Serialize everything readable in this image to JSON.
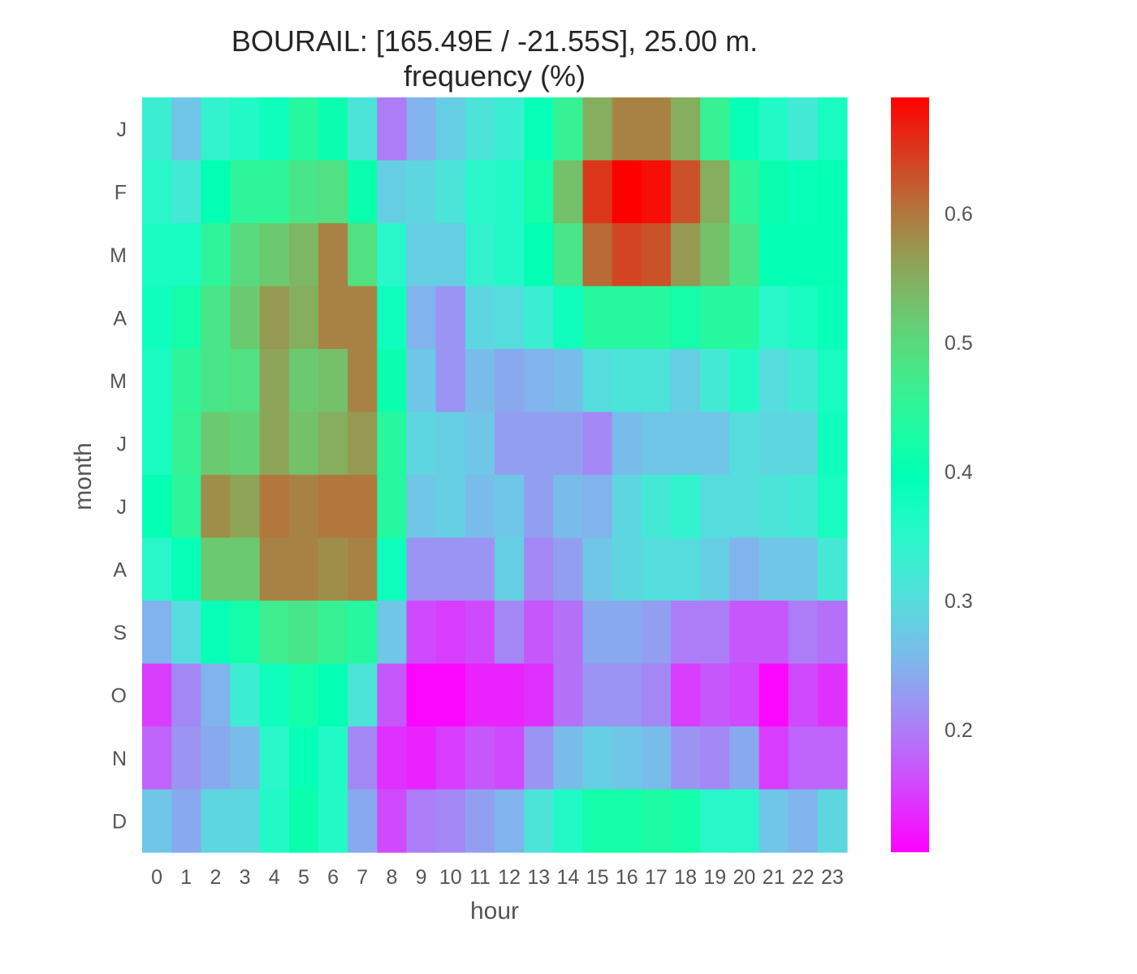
{
  "chart_data": {
    "type": "heatmap",
    "title_line1": "BOURAIL: [165.49E / -21.55S], 25.00 m.",
    "title_line2": "frequency (%)",
    "xlabel": "hour",
    "ylabel": "month",
    "x": [
      "0",
      "1",
      "2",
      "3",
      "4",
      "5",
      "6",
      "7",
      "8",
      "9",
      "10",
      "11",
      "12",
      "13",
      "14",
      "15",
      "16",
      "17",
      "18",
      "19",
      "20",
      "21",
      "22",
      "23"
    ],
    "y": [
      "J",
      "F",
      "M",
      "A",
      "M",
      "J",
      "J",
      "A",
      "S",
      "O",
      "N",
      "D"
    ],
    "colormap": "rainbow",
    "colorbar": {
      "min": 0.105,
      "max": 0.69,
      "ticks": [
        0.2,
        0.3,
        0.4,
        0.5,
        0.6
      ],
      "tick_labels": [
        "0.2",
        "0.3",
        "0.4",
        "0.5",
        "0.6"
      ]
    },
    "values": [
      [
        0.33,
        0.27,
        0.34,
        0.36,
        0.38,
        0.44,
        0.41,
        0.31,
        0.2,
        0.25,
        0.28,
        0.31,
        0.33,
        0.39,
        0.46,
        0.55,
        0.59,
        0.59,
        0.55,
        0.46,
        0.39,
        0.36,
        0.32,
        0.37
      ],
      [
        0.35,
        0.32,
        0.4,
        0.45,
        0.45,
        0.48,
        0.49,
        0.41,
        0.28,
        0.29,
        0.31,
        0.35,
        0.36,
        0.42,
        0.53,
        0.65,
        0.69,
        0.68,
        0.63,
        0.55,
        0.45,
        0.41,
        0.39,
        0.4
      ],
      [
        0.37,
        0.37,
        0.45,
        0.5,
        0.52,
        0.54,
        0.59,
        0.49,
        0.35,
        0.28,
        0.28,
        0.34,
        0.36,
        0.4,
        0.48,
        0.61,
        0.64,
        0.63,
        0.57,
        0.53,
        0.48,
        0.4,
        0.4,
        0.4
      ],
      [
        0.38,
        0.42,
        0.48,
        0.52,
        0.57,
        0.55,
        0.59,
        0.59,
        0.38,
        0.25,
        0.22,
        0.29,
        0.3,
        0.33,
        0.38,
        0.44,
        0.44,
        0.44,
        0.42,
        0.44,
        0.44,
        0.35,
        0.37,
        0.39
      ],
      [
        0.37,
        0.45,
        0.48,
        0.49,
        0.56,
        0.52,
        0.53,
        0.59,
        0.41,
        0.27,
        0.22,
        0.26,
        0.24,
        0.25,
        0.26,
        0.3,
        0.31,
        0.31,
        0.28,
        0.32,
        0.36,
        0.3,
        0.32,
        0.37
      ],
      [
        0.37,
        0.46,
        0.52,
        0.51,
        0.56,
        0.53,
        0.55,
        0.57,
        0.44,
        0.29,
        0.28,
        0.27,
        0.23,
        0.23,
        0.23,
        0.21,
        0.26,
        0.27,
        0.27,
        0.27,
        0.3,
        0.29,
        0.29,
        0.38
      ],
      [
        0.4,
        0.45,
        0.58,
        0.56,
        0.6,
        0.59,
        0.6,
        0.6,
        0.44,
        0.27,
        0.28,
        0.26,
        0.27,
        0.23,
        0.26,
        0.25,
        0.29,
        0.32,
        0.34,
        0.3,
        0.3,
        0.31,
        0.32,
        0.37
      ],
      [
        0.35,
        0.39,
        0.52,
        0.52,
        0.59,
        0.59,
        0.58,
        0.59,
        0.38,
        0.22,
        0.22,
        0.22,
        0.28,
        0.21,
        0.23,
        0.27,
        0.29,
        0.3,
        0.3,
        0.28,
        0.25,
        0.27,
        0.27,
        0.32
      ],
      [
        0.25,
        0.3,
        0.39,
        0.42,
        0.47,
        0.48,
        0.46,
        0.44,
        0.27,
        0.16,
        0.15,
        0.16,
        0.21,
        0.17,
        0.19,
        0.24,
        0.24,
        0.23,
        0.2,
        0.2,
        0.17,
        0.17,
        0.2,
        0.19
      ],
      [
        0.15,
        0.21,
        0.25,
        0.33,
        0.38,
        0.42,
        0.4,
        0.31,
        0.17,
        0.11,
        0.11,
        0.13,
        0.13,
        0.14,
        0.19,
        0.22,
        0.22,
        0.21,
        0.15,
        0.17,
        0.16,
        0.11,
        0.16,
        0.14
      ],
      [
        0.18,
        0.22,
        0.24,
        0.26,
        0.35,
        0.39,
        0.36,
        0.21,
        0.14,
        0.13,
        0.15,
        0.17,
        0.16,
        0.22,
        0.26,
        0.28,
        0.27,
        0.26,
        0.22,
        0.21,
        0.24,
        0.15,
        0.18,
        0.18
      ],
      [
        0.27,
        0.24,
        0.29,
        0.29,
        0.36,
        0.41,
        0.36,
        0.24,
        0.16,
        0.2,
        0.21,
        0.23,
        0.25,
        0.31,
        0.36,
        0.42,
        0.42,
        0.43,
        0.42,
        0.35,
        0.35,
        0.27,
        0.25,
        0.29
      ]
    ]
  }
}
